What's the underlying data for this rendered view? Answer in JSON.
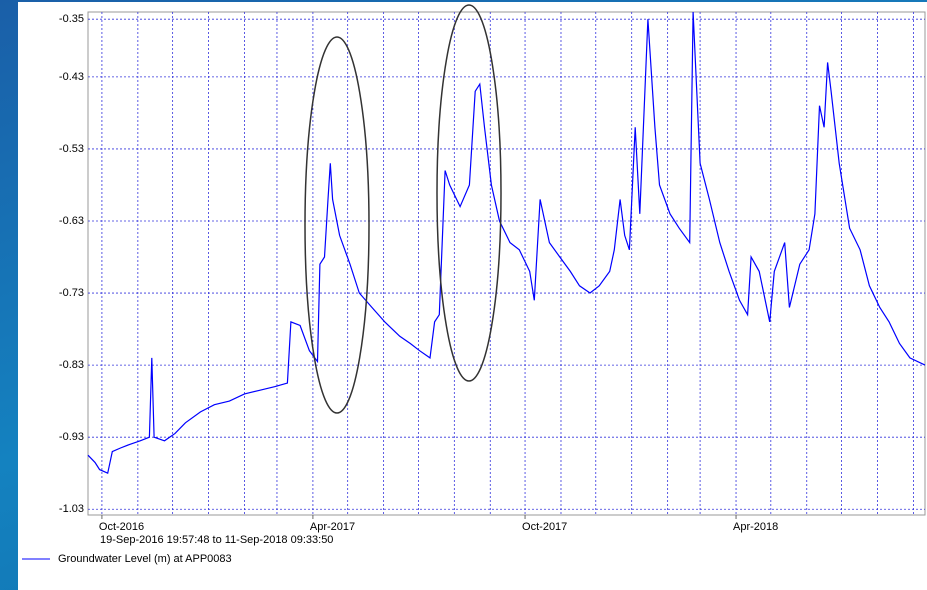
{
  "chart_data": {
    "type": "line",
    "subtitle": "19-Sep-2016 19:57:48 to 11-Sep-2018 09:33:50",
    "x": [
      "2016-09-19",
      "2016-09-25",
      "2016-09-29",
      "2016-10-06",
      "2016-10-10",
      "2016-10-17",
      "2016-10-25",
      "2016-11-03",
      "2016-11-11",
      "2016-11-13",
      "2016-11-15",
      "2016-11-24",
      "2016-12-03",
      "2016-12-12",
      "2016-12-25",
      "2017-01-06",
      "2017-01-19",
      "2017-02-01",
      "2017-02-14",
      "2017-02-27",
      "2017-03-10",
      "2017-03-13",
      "2017-03-21",
      "2017-03-29",
      "2017-04-05",
      "2017-04-07",
      "2017-04-11",
      "2017-04-14",
      "2017-04-16",
      "2017-04-18",
      "2017-04-24",
      "2017-05-03",
      "2017-05-11",
      "2017-05-22",
      "2017-06-02",
      "2017-06-15",
      "2017-06-24",
      "2017-07-02",
      "2017-07-11",
      "2017-07-15",
      "2017-07-19",
      "2017-07-24",
      "2017-07-28",
      "2017-08-06",
      "2017-08-14",
      "2017-08-19",
      "2017-08-23",
      "2017-08-27",
      "2017-09-02",
      "2017-09-09",
      "2017-09-18",
      "2017-09-26",
      "2017-10-05",
      "2017-10-09",
      "2017-10-14",
      "2017-10-22",
      "2017-10-31",
      "2017-11-09",
      "2017-11-17",
      "2017-11-26",
      "2017-12-04",
      "2017-12-13",
      "2017-12-17",
      "2017-12-22",
      "2017-12-26",
      "2017-12-30",
      "2018-01-04",
      "2018-01-08",
      "2018-01-15",
      "2018-01-21",
      "2018-01-25",
      "2018-02-03",
      "2018-02-11",
      "2018-02-20",
      "2018-02-23",
      "2018-03-01",
      "2018-03-09",
      "2018-03-18",
      "2018-03-26",
      "2018-04-04",
      "2018-04-11",
      "2018-04-14",
      "2018-04-21",
      "2018-04-30",
      "2018-05-04",
      "2018-05-13",
      "2018-05-17",
      "2018-05-26",
      "2018-06-03",
      "2018-06-08",
      "2018-06-12",
      "2018-06-16",
      "2018-06-19",
      "2018-06-22",
      "2018-06-29",
      "2018-07-08",
      "2018-07-17",
      "2018-07-25",
      "2018-08-03",
      "2018-08-11",
      "2018-08-20",
      "2018-08-29",
      "2018-09-11"
    ],
    "series": [
      {
        "name": "Groundwater Level (m) at APP0083",
        "color": "#0000ff",
        "values": [
          -0.955,
          -0.965,
          -0.975,
          -0.98,
          -0.95,
          -0.945,
          -0.94,
          -0.935,
          -0.93,
          -0.82,
          -0.93,
          -0.935,
          -0.925,
          -0.91,
          -0.895,
          -0.885,
          -0.88,
          -0.87,
          -0.865,
          -0.86,
          -0.855,
          -0.77,
          -0.775,
          -0.81,
          -0.825,
          -0.69,
          -0.68,
          -0.6,
          -0.55,
          -0.6,
          -0.65,
          -0.69,
          -0.73,
          -0.75,
          -0.77,
          -0.79,
          -0.8,
          -0.81,
          -0.82,
          -0.77,
          -0.76,
          -0.56,
          -0.58,
          -0.61,
          -0.58,
          -0.45,
          -0.44,
          -0.5,
          -0.58,
          -0.63,
          -0.66,
          -0.67,
          -0.7,
          -0.74,
          -0.6,
          -0.66,
          -0.68,
          -0.7,
          -0.72,
          -0.73,
          -0.72,
          -0.7,
          -0.67,
          -0.6,
          -0.65,
          -0.67,
          -0.5,
          -0.62,
          -0.35,
          -0.5,
          -0.58,
          -0.62,
          -0.64,
          -0.66,
          -0.34,
          -0.55,
          -0.6,
          -0.66,
          -0.7,
          -0.74,
          -0.76,
          -0.68,
          -0.7,
          -0.77,
          -0.7,
          -0.66,
          -0.75,
          -0.69,
          -0.67,
          -0.62,
          -0.47,
          -0.5,
          -0.41,
          -0.45,
          -0.55,
          -0.64,
          -0.67,
          -0.72,
          -0.75,
          -0.77,
          -0.8,
          -0.82,
          -0.83
        ]
      }
    ],
    "xlim": [
      "2016-09-19",
      "2018-09-11"
    ],
    "xticks": [
      {
        "value": "2016-10-01",
        "label": "Oct-2016"
      },
      {
        "value": "2017-04-01",
        "label": "Apr-2017"
      },
      {
        "value": "2017-10-01",
        "label": "Oct-2017"
      },
      {
        "value": "2018-04-01",
        "label": "Apr-2018"
      }
    ],
    "xgrid": [
      "2016-10-01",
      "2016-11-01",
      "2016-12-01",
      "2017-01-01",
      "2017-02-01",
      "2017-03-01",
      "2017-04-01",
      "2017-05-01",
      "2017-06-01",
      "2017-07-01",
      "2017-08-01",
      "2017-09-01",
      "2017-10-01",
      "2017-11-01",
      "2017-12-01",
      "2018-01-01",
      "2018-02-01",
      "2018-03-01",
      "2018-04-01",
      "2018-05-01",
      "2018-06-01",
      "2018-07-01",
      "2018-08-01",
      "2018-09-01"
    ],
    "ylim": [
      -1.038,
      -0.34
    ],
    "yticks": [
      -1.03,
      -0.93,
      -0.83,
      -0.73,
      -0.63,
      -0.53,
      -0.43,
      -0.35
    ],
    "grid": true
  }
}
